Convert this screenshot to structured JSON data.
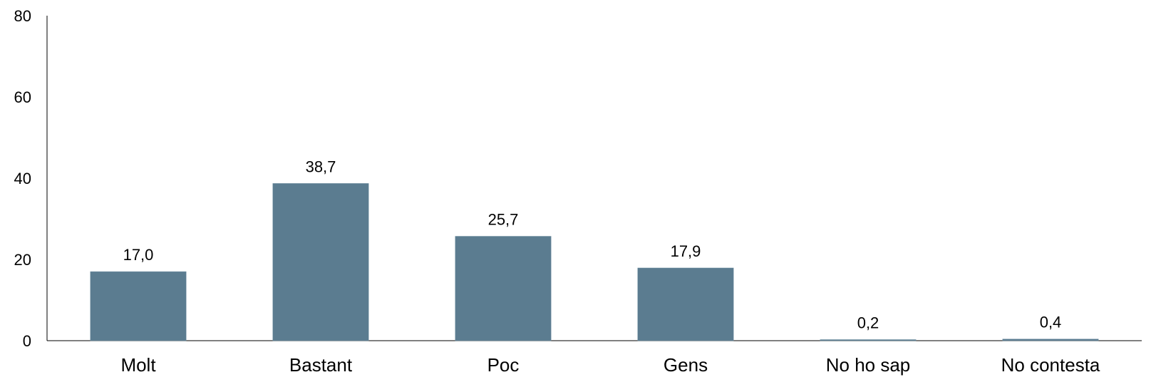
{
  "chart_data": {
    "type": "bar",
    "title": "",
    "xlabel": "",
    "ylabel": "",
    "categories": [
      "Molt",
      "Bastant",
      "Poc",
      "Gens",
      "No ho sap",
      "No contesta"
    ],
    "values": [
      17.0,
      38.7,
      25.7,
      17.9,
      0.2,
      0.4
    ],
    "data_labels": [
      "17,0",
      "38,7",
      "25,7",
      "17,9",
      "0,2",
      "0,4"
    ],
    "ylim": [
      0,
      80
    ],
    "yticks": [
      0,
      20,
      40,
      60,
      80
    ],
    "ytick_labels": [
      "0",
      "20",
      "40",
      "60",
      "80"
    ],
    "grid": false,
    "bar_color": "#5b7c90",
    "axis_color": "#000000"
  }
}
